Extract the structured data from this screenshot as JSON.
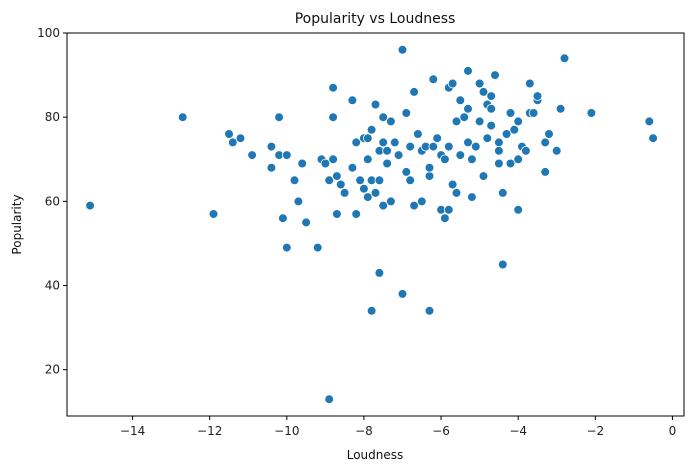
{
  "chart_data": {
    "type": "scatter",
    "title": "Popularity vs Loudness",
    "xlabel": "Loudness",
    "ylabel": "Popularity",
    "xlim": [
      -15.7,
      0.3
    ],
    "ylim": [
      9,
      100
    ],
    "xticks": [
      -14,
      -12,
      -10,
      -8,
      -6,
      -4,
      -2,
      0
    ],
    "yticks": [
      20,
      40,
      60,
      80,
      100
    ],
    "grid": false,
    "color": "#1f77b4",
    "points": [
      [
        -15.1,
        59
      ],
      [
        -12.7,
        80
      ],
      [
        -11.9,
        57
      ],
      [
        -11.5,
        76
      ],
      [
        -11.4,
        74
      ],
      [
        -11.2,
        75
      ],
      [
        -10.9,
        71
      ],
      [
        -10.4,
        73
      ],
      [
        -10.4,
        68
      ],
      [
        -10.2,
        71
      ],
      [
        -10.2,
        80
      ],
      [
        -10.1,
        56
      ],
      [
        -10.0,
        49
      ],
      [
        -10.0,
        71
      ],
      [
        -9.8,
        65
      ],
      [
        -9.7,
        60
      ],
      [
        -9.6,
        69
      ],
      [
        -9.5,
        55
      ],
      [
        -9.2,
        49
      ],
      [
        -9.1,
        70
      ],
      [
        -9.0,
        69
      ],
      [
        -8.9,
        13
      ],
      [
        -8.9,
        65
      ],
      [
        -8.8,
        70
      ],
      [
        -8.8,
        87
      ],
      [
        -8.8,
        80
      ],
      [
        -8.7,
        66
      ],
      [
        -8.7,
        57
      ],
      [
        -8.6,
        64
      ],
      [
        -8.5,
        62
      ],
      [
        -8.3,
        84
      ],
      [
        -8.3,
        68
      ],
      [
        -8.2,
        57
      ],
      [
        -8.2,
        74
      ],
      [
        -8.1,
        65
      ],
      [
        -8.0,
        63
      ],
      [
        -8.0,
        75
      ],
      [
        -7.9,
        61
      ],
      [
        -7.9,
        70
      ],
      [
        -7.9,
        75
      ],
      [
        -7.8,
        65
      ],
      [
        -7.8,
        77
      ],
      [
        -7.8,
        34
      ],
      [
        -7.7,
        62
      ],
      [
        -7.7,
        83
      ],
      [
        -7.6,
        72
      ],
      [
        -7.6,
        43
      ],
      [
        -7.6,
        65
      ],
      [
        -7.5,
        80
      ],
      [
        -7.5,
        59
      ],
      [
        -7.5,
        74
      ],
      [
        -7.4,
        69
      ],
      [
        -7.4,
        72
      ],
      [
        -7.3,
        60
      ],
      [
        -7.3,
        79
      ],
      [
        -7.2,
        74
      ],
      [
        -7.1,
        71
      ],
      [
        -7.0,
        96
      ],
      [
        -7.0,
        38
      ],
      [
        -6.9,
        67
      ],
      [
        -6.9,
        81
      ],
      [
        -6.8,
        65
      ],
      [
        -6.8,
        73
      ],
      [
        -6.7,
        86
      ],
      [
        -6.7,
        59
      ],
      [
        -6.6,
        76
      ],
      [
        -6.5,
        72
      ],
      [
        -6.5,
        60
      ],
      [
        -6.4,
        73
      ],
      [
        -6.3,
        34
      ],
      [
        -6.3,
        66
      ],
      [
        -6.3,
        68
      ],
      [
        -6.2,
        89
      ],
      [
        -6.2,
        73
      ],
      [
        -6.1,
        75
      ],
      [
        -6.0,
        58
      ],
      [
        -6.0,
        71
      ],
      [
        -5.9,
        70
      ],
      [
        -5.9,
        56
      ],
      [
        -5.8,
        58
      ],
      [
        -5.8,
        73
      ],
      [
        -5.8,
        87
      ],
      [
        -5.7,
        88
      ],
      [
        -5.7,
        64
      ],
      [
        -5.6,
        79
      ],
      [
        -5.6,
        62
      ],
      [
        -5.5,
        71
      ],
      [
        -5.5,
        84
      ],
      [
        -5.4,
        80
      ],
      [
        -5.3,
        74
      ],
      [
        -5.3,
        91
      ],
      [
        -5.3,
        82
      ],
      [
        -5.2,
        70
      ],
      [
        -5.2,
        61
      ],
      [
        -5.1,
        73
      ],
      [
        -5.0,
        88
      ],
      [
        -5.0,
        79
      ],
      [
        -4.9,
        86
      ],
      [
        -4.9,
        66
      ],
      [
        -4.8,
        83
      ],
      [
        -4.8,
        75
      ],
      [
        -4.7,
        85
      ],
      [
        -4.7,
        82
      ],
      [
        -4.7,
        78
      ],
      [
        -4.6,
        90
      ],
      [
        -4.5,
        74
      ],
      [
        -4.5,
        69
      ],
      [
        -4.5,
        72
      ],
      [
        -4.4,
        62
      ],
      [
        -4.4,
        45
      ],
      [
        -4.3,
        76
      ],
      [
        -4.2,
        81
      ],
      [
        -4.2,
        69
      ],
      [
        -4.1,
        77
      ],
      [
        -4.0,
        70
      ],
      [
        -4.0,
        58
      ],
      [
        -4.0,
        79
      ],
      [
        -3.9,
        73
      ],
      [
        -3.8,
        72
      ],
      [
        -3.7,
        81
      ],
      [
        -3.7,
        88
      ],
      [
        -3.6,
        81
      ],
      [
        -3.5,
        84
      ],
      [
        -3.5,
        85
      ],
      [
        -3.3,
        74
      ],
      [
        -3.3,
        67
      ],
      [
        -3.2,
        76
      ],
      [
        -3.0,
        72
      ],
      [
        -2.9,
        82
      ],
      [
        -2.8,
        94
      ],
      [
        -2.1,
        81
      ],
      [
        -0.6,
        79
      ],
      [
        -0.5,
        75
      ]
    ]
  }
}
